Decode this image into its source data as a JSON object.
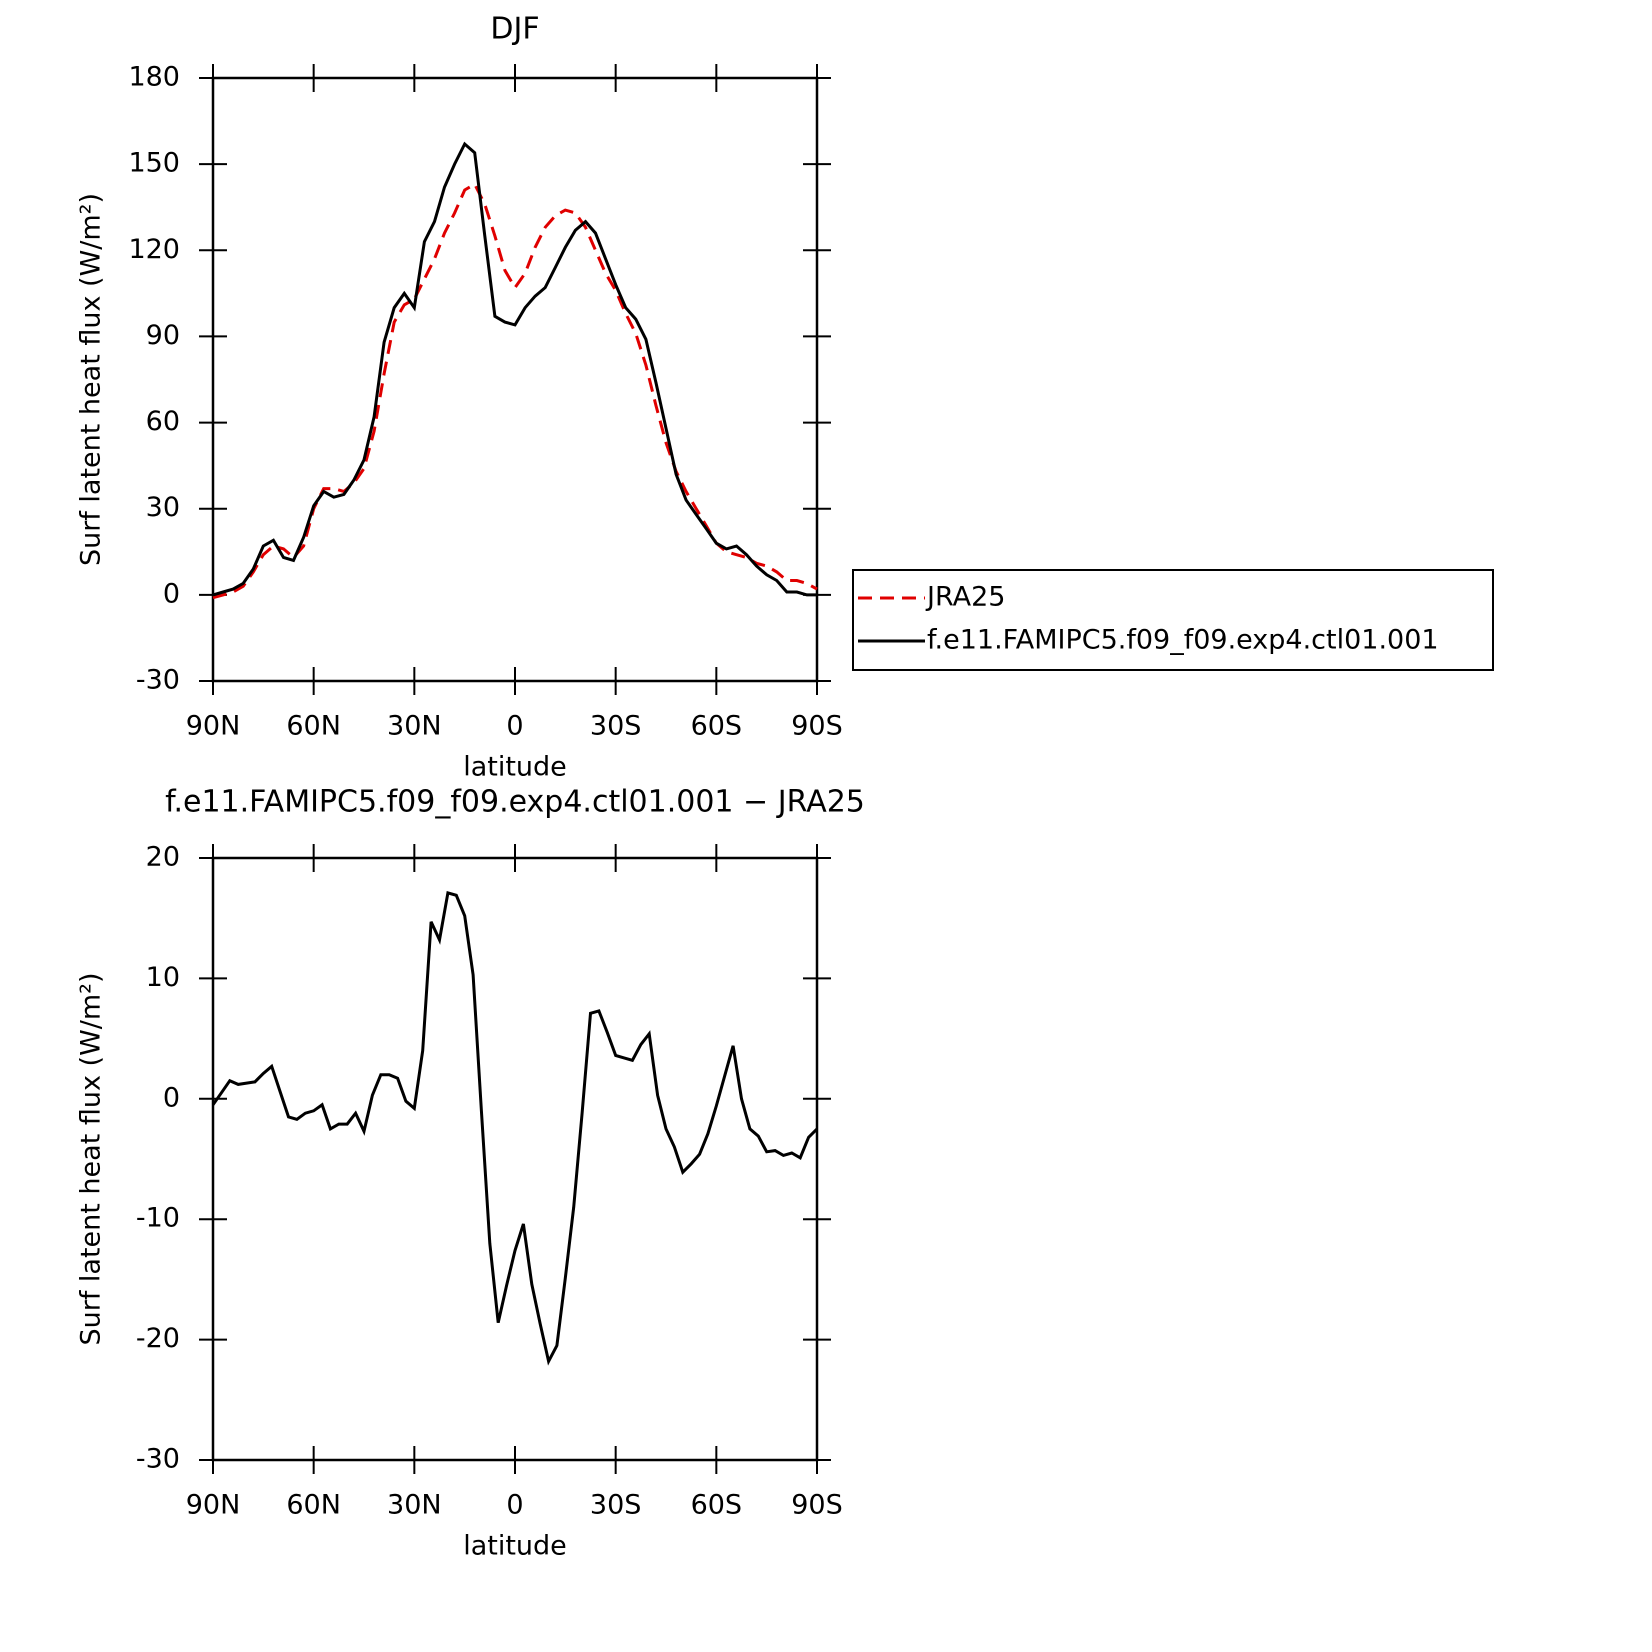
{
  "chart_data": [
    {
      "type": "line",
      "title": "DJF",
      "xlabel": "latitude",
      "ylabel": "Surf latent heat flux (W/m²)",
      "x": [
        90,
        87,
        84,
        81,
        78,
        75,
        72,
        69,
        66,
        63,
        60,
        57,
        54,
        51,
        48,
        45,
        42,
        39,
        36,
        33,
        30,
        27,
        24,
        21,
        18,
        15,
        12,
        9,
        6,
        3,
        0,
        -3,
        -6,
        -9,
        -12,
        -15,
        -18,
        -21,
        -24,
        -27,
        -30,
        -33,
        -36,
        -39,
        -42,
        -45,
        -48,
        -51,
        -54,
        -57,
        -60,
        -63,
        -66,
        -69,
        -72,
        -75,
        -78,
        -81,
        -84,
        -87,
        -90
      ],
      "series": [
        {
          "name": "JRA25",
          "color": "#e00000",
          "linestyle": "dashed",
          "values": [
            -1,
            0,
            1,
            3,
            8,
            14,
            17,
            16,
            13,
            17,
            30,
            37,
            37,
            36,
            39,
            44,
            57,
            77,
            95,
            101,
            103,
            110,
            117,
            126,
            133,
            141,
            143,
            136,
            125,
            113,
            107,
            112,
            121,
            128,
            132,
            134,
            133,
            128,
            120,
            112,
            106,
            98,
            91,
            80,
            66,
            53,
            43,
            36,
            30,
            24,
            18,
            15,
            14,
            13,
            11,
            10,
            8,
            5,
            5,
            4,
            2
          ]
        },
        {
          "name": "f.e11.FAMIPC5.f09_f09.exp4.ctl01.001",
          "color": "#000000",
          "linestyle": "solid",
          "values": [
            0,
            1,
            2,
            4,
            9,
            17,
            19,
            13,
            12,
            20,
            31,
            36,
            34,
            35,
            40,
            47,
            62,
            88,
            100,
            105,
            100,
            123,
            130,
            142,
            150,
            157,
            154,
            125,
            97,
            95,
            94,
            100,
            104,
            107,
            114,
            121,
            127,
            130,
            126,
            117,
            108,
            100,
            96,
            89,
            74,
            58,
            42,
            33,
            28,
            23,
            18,
            16,
            17,
            14,
            10,
            7,
            5,
            1,
            1,
            0,
            0
          ]
        }
      ],
      "xlim": [
        90,
        -90
      ],
      "xticks": [
        {
          "value": 90,
          "label": "90N"
        },
        {
          "value": 60,
          "label": "60N"
        },
        {
          "value": 30,
          "label": "30N"
        },
        0,
        {
          "value": -30,
          "label": "30S"
        },
        {
          "value": -60,
          "label": "60S"
        },
        {
          "value": -90,
          "label": "90S"
        }
      ],
      "ylim": [
        -30,
        180
      ],
      "yticks": [
        -30,
        0,
        30,
        60,
        90,
        120,
        150,
        180
      ],
      "legend": "right"
    },
    {
      "type": "line",
      "title": "f.e11.FAMIPC5.f09_f09.exp4.ctl01.001 − JRA25",
      "xlabel": "latitude",
      "ylabel": "Surf latent heat flux (W/m²)",
      "x": [
        90,
        87.5,
        85,
        82.5,
        80,
        77.5,
        75,
        72.5,
        70,
        67.5,
        65,
        62.5,
        60,
        57.5,
        55,
        52.5,
        50,
        47.5,
        45,
        42.5,
        40,
        37.5,
        35,
        32.5,
        30,
        27.5,
        25,
        22.5,
        20,
        17.5,
        15,
        12.5,
        10,
        7.5,
        5,
        2.5,
        0,
        -2.5,
        -5,
        -7.5,
        -10,
        -12.5,
        -15,
        -17.5,
        -20,
        -22.5,
        -25,
        -27.5,
        -30,
        -32.5,
        -35,
        -37.5,
        -40,
        -42.5,
        -45,
        -47.5,
        -50,
        -52.5,
        -55,
        -57.5,
        -60,
        -62.5,
        -65,
        -67.5,
        -70,
        -72.5,
        -75,
        -77.5,
        -80,
        -82.5,
        -85,
        -87.5,
        -90
      ],
      "values": [
        -0.5,
        0.5,
        1.5,
        1.2,
        1.3,
        1.4,
        2.1,
        2.7,
        0.6,
        -1.5,
        -1.7,
        -1.2,
        -1.0,
        -0.5,
        -2.5,
        -2.1,
        -2.1,
        -1.2,
        -2.7,
        0.3,
        2.0,
        2.0,
        1.7,
        -0.2,
        -0.8,
        4.0,
        14.7,
        13.2,
        17.1,
        16.9,
        15.2,
        10.3,
        -1,
        -12,
        -18.6,
        -15.5,
        -12.6,
        -10.4,
        -15.4,
        -18.7,
        -21.8,
        -20.5,
        -14.9,
        -9.0,
        -1.2,
        7.1,
        7.3,
        5.5,
        3.6,
        3.4,
        3.2,
        4.5,
        5.4,
        0.3,
        -2.5,
        -4.0,
        -6.1,
        -5.4,
        -4.6,
        -2.9,
        -0.6,
        1.9,
        4.4,
        0.0,
        -2.5,
        -3.1,
        -4.4,
        -4.3,
        -4.7,
        -4.5,
        -4.9,
        -3.2,
        -2.5
      ],
      "color": "#000000",
      "linestyle": "solid",
      "xlim": [
        90,
        -90
      ],
      "xticks": [
        {
          "value": 90,
          "label": "90N"
        },
        {
          "value": 60,
          "label": "60N"
        },
        {
          "value": 30,
          "label": "30N"
        },
        0,
        {
          "value": -30,
          "label": "30S"
        },
        {
          "value": -60,
          "label": "60S"
        },
        {
          "value": -90,
          "label": "90S"
        }
      ],
      "ylim": [
        -30,
        20
      ],
      "yticks": [
        -30,
        -20,
        -10,
        0,
        10,
        20
      ]
    }
  ]
}
